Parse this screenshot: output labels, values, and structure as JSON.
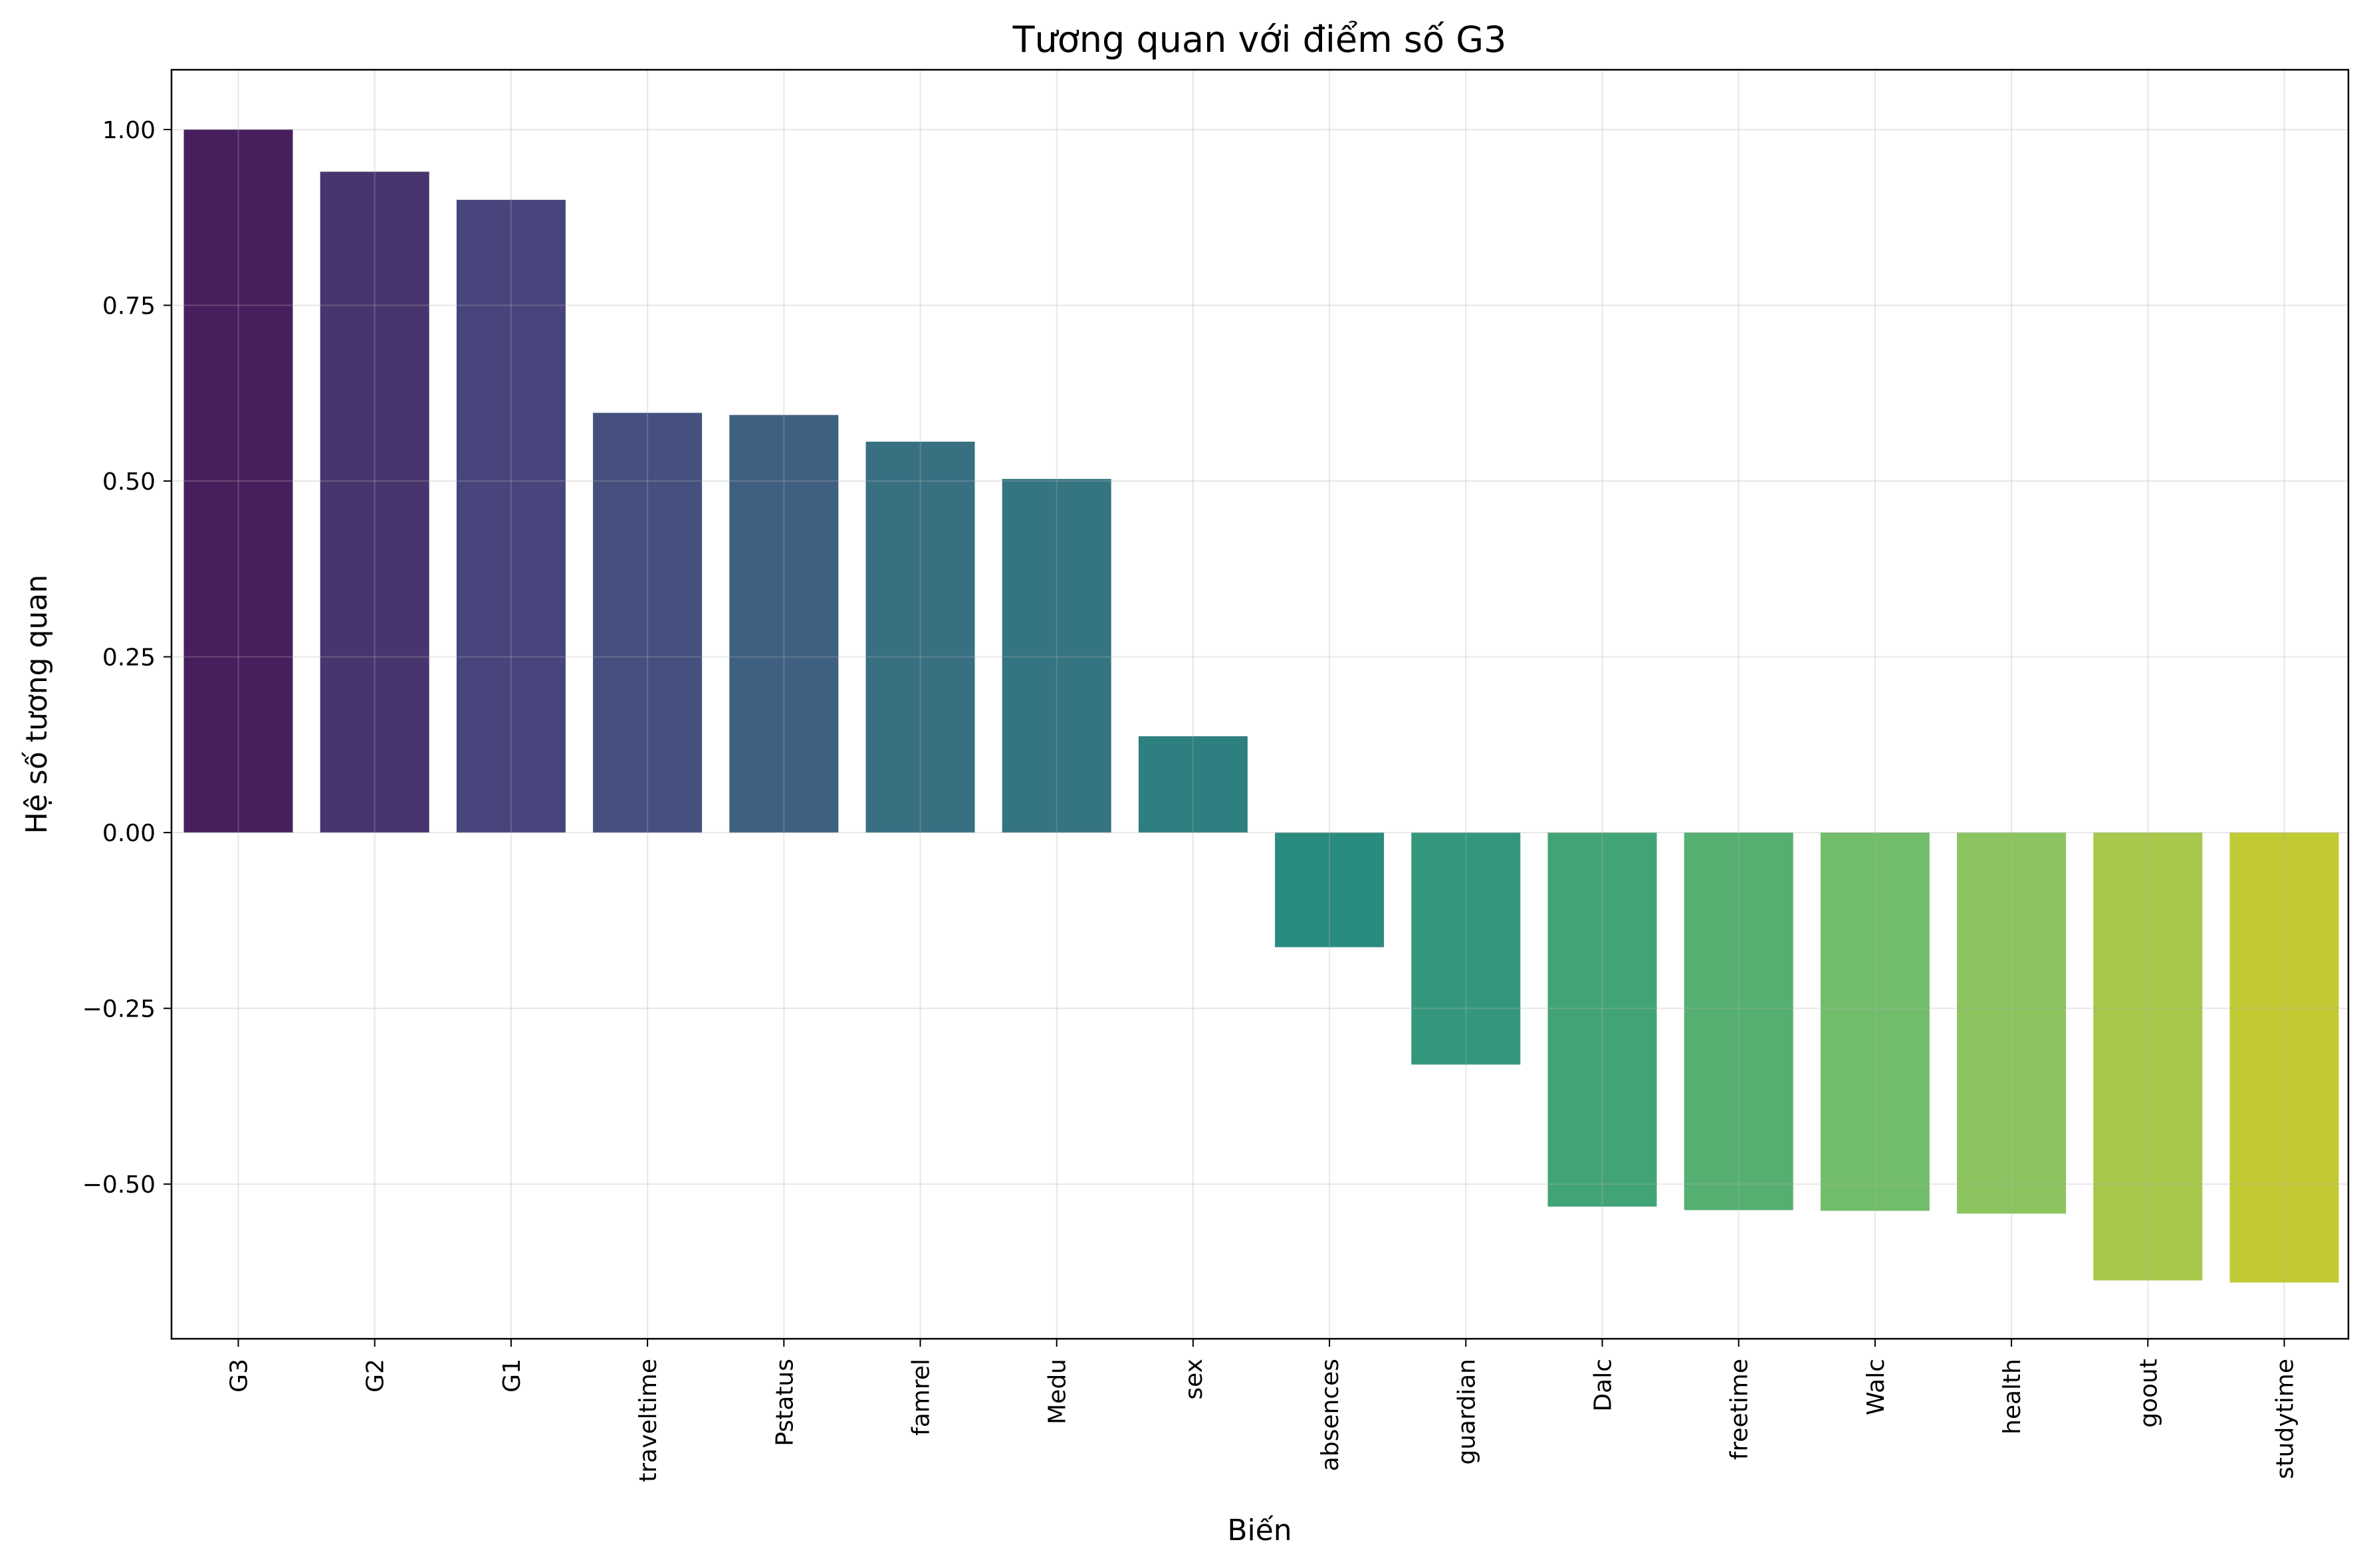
{
  "chart_data": {
    "type": "bar",
    "title": "Tương quan với điểm số G3",
    "xlabel": "Biến",
    "ylabel": "Hệ số tương quan",
    "categories": [
      "G3",
      "G2",
      "G1",
      "traveltime",
      "Pstatus",
      "famrel",
      "Medu",
      "sex",
      "absences",
      "guardian",
      "Dalc",
      "freetime",
      "Walc",
      "health",
      "goout",
      "studytime"
    ],
    "values": [
      1.0,
      0.94,
      0.9,
      0.597,
      0.594,
      0.556,
      0.503,
      0.137,
      -0.163,
      -0.33,
      -0.532,
      -0.537,
      -0.538,
      -0.542,
      -0.637,
      -0.64
    ],
    "colors": [
      "#481f5d",
      "#48356e",
      "#48447c",
      "#45507f",
      "#406082",
      "#387082",
      "#357581",
      "#2e7f80",
      "#2a8b7f",
      "#34977d",
      "#42a476",
      "#55af71",
      "#72bd6b",
      "#8bc45f",
      "#a7c84a",
      "#c2ca33"
    ],
    "ylim": [
      -0.72,
      1.085
    ],
    "yticks": [
      1.0,
      0.75,
      0.5,
      0.25,
      0.0,
      -0.25,
      -0.5
    ],
    "ytick_labels": [
      "1.00",
      "0.75",
      "0.50",
      "0.25",
      "0.00",
      "−0.25",
      "−0.50"
    ],
    "grid": true,
    "legend": "none"
  }
}
